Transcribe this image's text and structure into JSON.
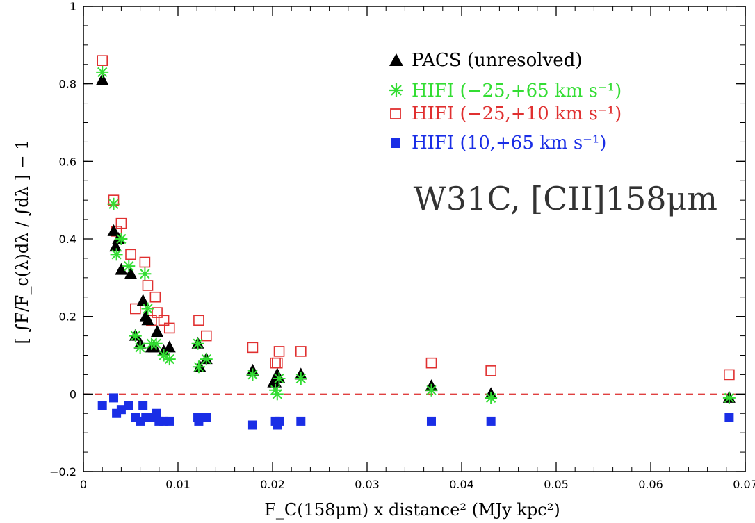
{
  "chart_data": {
    "type": "scatter",
    "xlabel": "F_C(158μm) x distance² (MJy kpc²)",
    "ylabel": "[ ∫F/F_c(λ)dλ / ∫dλ ] − 1",
    "annotation": "W31C, [CII]158μm",
    "xlim": [
      0,
      0.07
    ],
    "ylim": [
      -0.2,
      1.0
    ],
    "xticks": [
      "0",
      "0.01",
      "0.02",
      "0.03",
      "0.04",
      "0.05",
      "0.06",
      "0.07"
    ],
    "yticks": [
      "−0.2",
      "0",
      "0.2",
      "0.4",
      "0.6",
      "0.8",
      "1"
    ],
    "reference_line": {
      "y": 0,
      "style": "dashed",
      "color": "#e04040"
    },
    "legend_position": "top-right",
    "series": [
      {
        "name": "PACS (unresolved)",
        "color": "#000000",
        "marker": "filled-triangle",
        "points": [
          [
            0.002,
            0.81
          ],
          [
            0.0032,
            0.42
          ],
          [
            0.0034,
            0.38
          ],
          [
            0.0037,
            0.4
          ],
          [
            0.004,
            0.32
          ],
          [
            0.005,
            0.31
          ],
          [
            0.0055,
            0.15
          ],
          [
            0.006,
            0.13
          ],
          [
            0.0063,
            0.24
          ],
          [
            0.0066,
            0.2
          ],
          [
            0.0068,
            0.19
          ],
          [
            0.0072,
            0.12
          ],
          [
            0.0075,
            0.12
          ],
          [
            0.0078,
            0.16
          ],
          [
            0.0085,
            0.11
          ],
          [
            0.0091,
            0.12
          ],
          [
            0.0121,
            0.13
          ],
          [
            0.0123,
            0.07
          ],
          [
            0.013,
            0.09
          ],
          [
            0.0179,
            0.06
          ],
          [
            0.0201,
            0.03
          ],
          [
            0.0203,
            0.03
          ],
          [
            0.0205,
            0.05
          ],
          [
            0.0207,
            0.04
          ],
          [
            0.023,
            0.05
          ],
          [
            0.0368,
            0.02
          ],
          [
            0.0431,
            0.0
          ],
          [
            0.0683,
            -0.01
          ]
        ]
      },
      {
        "name": "HIFI (−25,+65 km s⁻¹)",
        "color": "#33dd33",
        "marker": "asterisk",
        "points": [
          [
            0.002,
            0.83
          ],
          [
            0.0032,
            0.49
          ],
          [
            0.0035,
            0.36
          ],
          [
            0.004,
            0.4
          ],
          [
            0.0048,
            0.33
          ],
          [
            0.0055,
            0.15
          ],
          [
            0.006,
            0.12
          ],
          [
            0.0065,
            0.31
          ],
          [
            0.0068,
            0.22
          ],
          [
            0.0072,
            0.13
          ],
          [
            0.0077,
            0.13
          ],
          [
            0.0085,
            0.1
          ],
          [
            0.0091,
            0.09
          ],
          [
            0.0121,
            0.13
          ],
          [
            0.0122,
            0.07
          ],
          [
            0.013,
            0.09
          ],
          [
            0.0179,
            0.05
          ],
          [
            0.0203,
            0.01
          ],
          [
            0.0205,
            0.0
          ],
          [
            0.0207,
            0.04
          ],
          [
            0.023,
            0.04
          ],
          [
            0.0368,
            0.01
          ],
          [
            0.0431,
            -0.01
          ],
          [
            0.0683,
            -0.01
          ]
        ]
      },
      {
        "name": "HIFI (−25,+10 km s⁻¹)",
        "color": "#e03030",
        "marker": "open-square",
        "points": [
          [
            0.002,
            0.86
          ],
          [
            0.0032,
            0.5
          ],
          [
            0.0035,
            0.42
          ],
          [
            0.004,
            0.44
          ],
          [
            0.005,
            0.36
          ],
          [
            0.0055,
            0.22
          ],
          [
            0.0065,
            0.34
          ],
          [
            0.0068,
            0.28
          ],
          [
            0.0072,
            0.19
          ],
          [
            0.0076,
            0.25
          ],
          [
            0.0078,
            0.21
          ],
          [
            0.0085,
            0.19
          ],
          [
            0.0091,
            0.17
          ],
          [
            0.0122,
            0.19
          ],
          [
            0.013,
            0.15
          ],
          [
            0.0179,
            0.12
          ],
          [
            0.0203,
            0.08
          ],
          [
            0.0205,
            0.08
          ],
          [
            0.0207,
            0.11
          ],
          [
            0.023,
            0.11
          ],
          [
            0.0368,
            0.08
          ],
          [
            0.0431,
            0.06
          ],
          [
            0.0683,
            0.05
          ]
        ]
      },
      {
        "name": "HIFI (10,+65 km s⁻¹)",
        "color": "#1a2ee6",
        "marker": "filled-square",
        "points": [
          [
            0.002,
            -0.03
          ],
          [
            0.0032,
            -0.01
          ],
          [
            0.0035,
            -0.05
          ],
          [
            0.004,
            -0.04
          ],
          [
            0.0048,
            -0.03
          ],
          [
            0.0055,
            -0.06
          ],
          [
            0.006,
            -0.07
          ],
          [
            0.0063,
            -0.03
          ],
          [
            0.0066,
            -0.06
          ],
          [
            0.0072,
            -0.06
          ],
          [
            0.0077,
            -0.05
          ],
          [
            0.008,
            -0.07
          ],
          [
            0.0085,
            -0.07
          ],
          [
            0.0091,
            -0.07
          ],
          [
            0.0121,
            -0.06
          ],
          [
            0.0122,
            -0.07
          ],
          [
            0.013,
            -0.06
          ],
          [
            0.0179,
            -0.08
          ],
          [
            0.0203,
            -0.07
          ],
          [
            0.0205,
            -0.08
          ],
          [
            0.0207,
            -0.07
          ],
          [
            0.023,
            -0.07
          ],
          [
            0.0368,
            -0.07
          ],
          [
            0.0431,
            -0.07
          ],
          [
            0.0683,
            -0.06
          ]
        ]
      }
    ]
  }
}
